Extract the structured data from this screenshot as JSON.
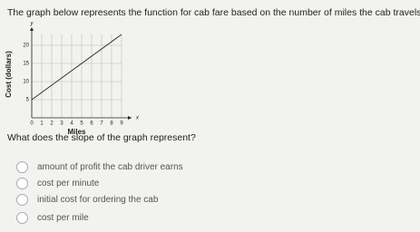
{
  "question": "The graph below represents the function for cab fare based on the number of miles the cab travels.",
  "prompt": "What does the slope of the graph represent?",
  "options": [
    "amount of profit the cab driver earns",
    "cost per minute",
    "initial cost for ordering the cab",
    "cost per mile"
  ],
  "chart_data": {
    "type": "line",
    "x_label": "Miles",
    "y_label": "Cost (dollars)",
    "x_arrow_label": "x",
    "y_arrow_label": "y",
    "x": [
      0,
      9
    ],
    "series": [
      {
        "color": "#333333",
        "values": [
          5,
          23
        ]
      }
    ],
    "xlim": [
      0,
      10
    ],
    "ylim": [
      0,
      24
    ],
    "xticks": [
      0,
      1,
      2,
      3,
      4,
      5,
      6,
      7,
      8,
      9
    ],
    "yticks": [
      5,
      10,
      15,
      20
    ],
    "grid": true
  }
}
